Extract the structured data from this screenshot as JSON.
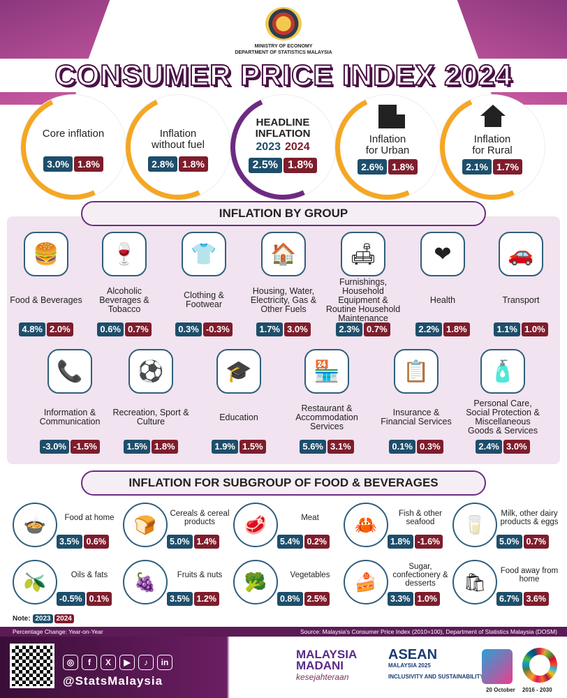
{
  "header": {
    "ministry_line1": "MINISTRY OF ECONOMY",
    "ministry_line2": "DEPARTMENT OF STATISTICS MALAYSIA",
    "title": "CONSUMER PRICE INDEX 2024"
  },
  "headline": {
    "core": {
      "label": "Core inflation",
      "v2023": "3.0%",
      "v2024": "1.8%"
    },
    "nofuel": {
      "label1": "Inflation",
      "label2": "without fuel",
      "v2023": "2.8%",
      "v2024": "1.8%"
    },
    "main": {
      "label1": "HEADLINE",
      "label2": "INFLATION",
      "year1": "2023",
      "year2": "2024",
      "v2023": "2.5%",
      "v2024": "1.8%"
    },
    "urban": {
      "label1": "Inflation",
      "label2": "for Urban",
      "v2023": "2.6%",
      "v2024": "1.8%"
    },
    "rural": {
      "label1": "Inflation",
      "label2": "for Rural",
      "v2023": "2.1%",
      "v2024": "1.7%"
    }
  },
  "groups_title": "INFLATION BY GROUP",
  "groups": [
    {
      "label": "Food & Beverages",
      "icon": "food-icon",
      "glyph": "🍔",
      "v2023": "4.8%",
      "v2024": "2.0%"
    },
    {
      "label": "Alcoholic Beverages & Tobacco",
      "icon": "wine-icon",
      "glyph": "🍷",
      "v2023": "0.6%",
      "v2024": "0.7%"
    },
    {
      "label": "Clothing & Footwear",
      "icon": "clothing-icon",
      "glyph": "👕",
      "v2023": "0.3%",
      "v2024": "-0.3%"
    },
    {
      "label": "Housing, Water, Electricity, Gas & Other Fuels",
      "icon": "house-icon",
      "glyph": "🏠",
      "v2023": "1.7%",
      "v2024": "3.0%"
    },
    {
      "label": "Furnishings, Household Equipment & Routine Household Maintenance",
      "icon": "sofa-icon",
      "glyph": "🛋",
      "v2023": "2.3%",
      "v2024": "0.7%"
    },
    {
      "label": "Health",
      "icon": "heart-icon",
      "glyph": "❤",
      "v2023": "2.2%",
      "v2024": "1.8%"
    },
    {
      "label": "Transport",
      "icon": "car-icon",
      "glyph": "🚗",
      "v2023": "1.1%",
      "v2024": "1.0%"
    },
    {
      "label": "Information & Communication",
      "icon": "phone-icon",
      "glyph": "📞",
      "v2023": "-3.0%",
      "v2024": "-1.5%"
    },
    {
      "label": "Recreation, Sport & Culture",
      "icon": "ball-icon",
      "glyph": "⚽",
      "v2023": "1.5%",
      "v2024": "1.8%"
    },
    {
      "label": "Education",
      "icon": "graduation-cap-icon",
      "glyph": "🎓",
      "v2023": "1.9%",
      "v2024": "1.5%"
    },
    {
      "label": "Restaurant & Accommodation Services",
      "icon": "shop-icon",
      "glyph": "🏪",
      "v2023": "5.6%",
      "v2024": "3.1%"
    },
    {
      "label": "Insurance & Financial Services",
      "icon": "document-shield-icon",
      "glyph": "📋",
      "v2023": "0.1%",
      "v2024": "0.3%"
    },
    {
      "label": "Personal Care, Social Protection & Miscellaneous Goods & Services",
      "icon": "cosmetics-icon",
      "glyph": "🧴",
      "v2023": "2.4%",
      "v2024": "3.0%"
    }
  ],
  "sub_title": "INFLATION FOR SUBGROUP OF FOOD & BEVERAGES",
  "subgroups": [
    {
      "label": "Food at home",
      "icon": "pot-icon",
      "glyph": "🍲",
      "v2023": "3.5%",
      "v2024": "0.6%"
    },
    {
      "label": "Cereals & cereal products",
      "icon": "cereal-icon",
      "glyph": "🍞",
      "v2023": "5.0%",
      "v2024": "1.4%"
    },
    {
      "label": "Meat",
      "icon": "meat-icon",
      "glyph": "🥩",
      "v2023": "5.4%",
      "v2024": "0.2%"
    },
    {
      "label": "Fish & other seafood",
      "icon": "crab-icon",
      "glyph": "🦀",
      "v2023": "1.8%",
      "v2024": "-1.6%"
    },
    {
      "label": "Milk, other dairy products & eggs",
      "icon": "milk-icon",
      "glyph": "🥛",
      "v2023": "5.0%",
      "v2024": "0.7%"
    },
    {
      "label": "Oils & fats",
      "icon": "oil-icon",
      "glyph": "🫒",
      "v2023": "-0.5%",
      "v2024": "0.1%"
    },
    {
      "label": "Fruits & nuts",
      "icon": "fruit-icon",
      "glyph": "🍇",
      "v2023": "3.5%",
      "v2024": "1.2%"
    },
    {
      "label": "Vegetables",
      "icon": "vegetable-icon",
      "glyph": "🥦",
      "v2023": "0.8%",
      "v2024": "2.5%"
    },
    {
      "label": "Sugar, confectionery & desserts",
      "icon": "dessert-icon",
      "glyph": "🍰",
      "v2023": "3.3%",
      "v2024": "1.0%"
    },
    {
      "label": "Food away from home",
      "icon": "takeaway-bag-icon",
      "glyph": "🛍",
      "v2023": "6.7%",
      "v2024": "3.6%"
    }
  ],
  "note": {
    "label": "Note:",
    "y1": "2023",
    "y2": "2024"
  },
  "strip": {
    "left": "Percentage Change: Year-on-Year",
    "right": "Source: Malaysia's Consumer Price Index (2010=100), Department of Statistics Malaysia (DOSM)"
  },
  "footer": {
    "handle": "@StatsMalaysia",
    "madani1": "MALAYSIA",
    "madani2": "MADANI",
    "madani3": "kesejahteraan",
    "asean1": "ASEAN",
    "asean2": "MALAYSIA 2025",
    "asean3": "INCLUSIVITY AND SUSTAINABILITY",
    "date": "20 October",
    "sdg_years": "2016 - 2030"
  },
  "colors": {
    "year2023": "#1d4e6b",
    "year2024": "#7e1d2c",
    "accent": "#6e2a82",
    "arc": "#f5a623"
  }
}
